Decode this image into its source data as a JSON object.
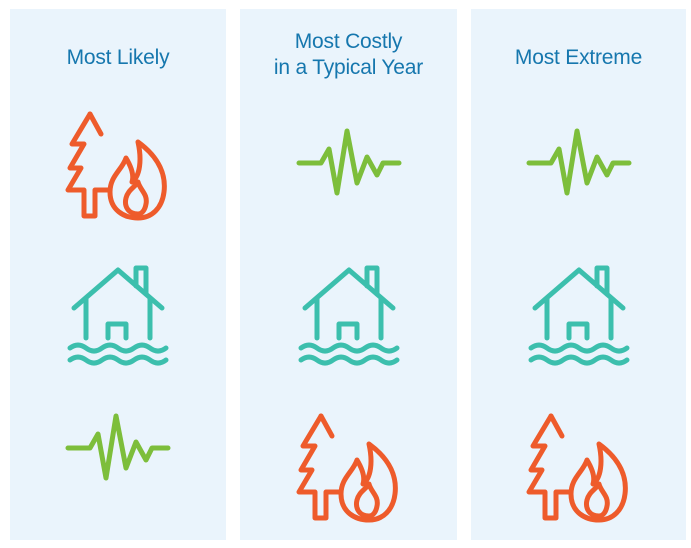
{
  "columns": [
    {
      "title_lines": [
        "Most Likely"
      ],
      "icons": [
        "wildfire-icon",
        "flood-icon",
        "earthquake-icon"
      ]
    },
    {
      "title_lines": [
        "Most Costly",
        "in a Typical Year"
      ],
      "icons": [
        "earthquake-icon",
        "flood-icon",
        "wildfire-icon"
      ]
    },
    {
      "title_lines": [
        "Most Extreme"
      ],
      "icons": [
        "earthquake-icon",
        "flood-icon",
        "wildfire-icon"
      ]
    }
  ],
  "colors": {
    "panel_background": "#eaf4fc",
    "title": "#1677ae",
    "wildfire": "#ee5b2b",
    "flood": "#3cbfad",
    "earthquake": "#7dbe3b"
  }
}
